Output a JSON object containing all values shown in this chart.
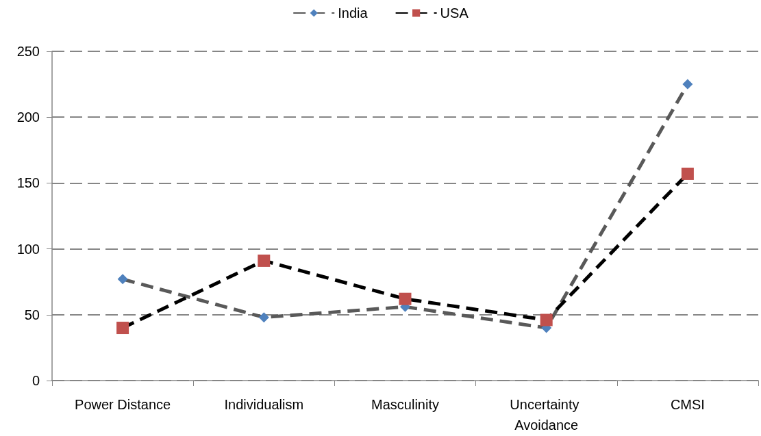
{
  "chart_data": {
    "type": "line",
    "categories": [
      "Power Distance",
      "Individualism",
      "Masculinity",
      "Uncertainty Avoidance",
      "CMSI"
    ],
    "series": [
      {
        "name": "India",
        "color": "#4f81bd",
        "marker": "diamond",
        "values": [
          77,
          48,
          56,
          40,
          225
        ]
      },
      {
        "name": "USA",
        "color": "#c0504d",
        "marker": "square",
        "values": [
          40,
          91,
          62,
          46,
          157
        ]
      }
    ],
    "ylim": [
      0,
      250
    ],
    "yticks": [
      0,
      50,
      100,
      150,
      200,
      250
    ],
    "grid": "y",
    "legend": "top",
    "line_style": "dashed"
  }
}
